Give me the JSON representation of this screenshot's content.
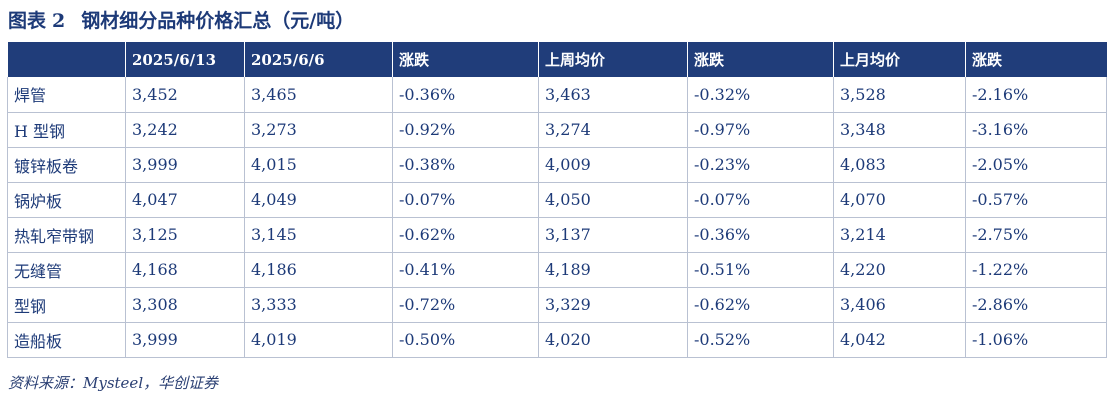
{
  "title": {
    "label": "图表",
    "number": "2",
    "text": "钢材细分品种价格汇总（元/吨）"
  },
  "table": {
    "headers": [
      "",
      "2025/6/13",
      "2025/6/6",
      "涨跌",
      "上周均价",
      "涨跌",
      "上月均价",
      "涨跌"
    ],
    "rows": [
      [
        "焊管",
        "3,452",
        "3,465",
        "-0.36%",
        "3,463",
        "-0.32%",
        "3,528",
        "-2.16%"
      ],
      [
        "H 型钢",
        "3,242",
        "3,273",
        "-0.92%",
        "3,274",
        "-0.97%",
        "3,348",
        "-3.16%"
      ],
      [
        "镀锌板卷",
        "3,999",
        "4,015",
        "-0.38%",
        "4,009",
        "-0.23%",
        "4,083",
        "-2.05%"
      ],
      [
        "锅炉板",
        "4,047",
        "4,049",
        "-0.07%",
        "4,050",
        "-0.07%",
        "4,070",
        "-0.57%"
      ],
      [
        "热轧窄带钢",
        "3,125",
        "3,145",
        "-0.62%",
        "3,137",
        "-0.36%",
        "3,214",
        "-2.75%"
      ],
      [
        "无缝管",
        "4,168",
        "4,186",
        "-0.41%",
        "4,189",
        "-0.51%",
        "4,220",
        "-1.22%"
      ],
      [
        "型钢",
        "3,308",
        "3,333",
        "-0.72%",
        "3,329",
        "-0.62%",
        "3,406",
        "-2.86%"
      ],
      [
        "造船板",
        "3,999",
        "4,019",
        "-0.50%",
        "4,020",
        "-0.52%",
        "4,042",
        "-1.06%"
      ]
    ]
  },
  "source": "资料来源：Mysteel，华创证券"
}
